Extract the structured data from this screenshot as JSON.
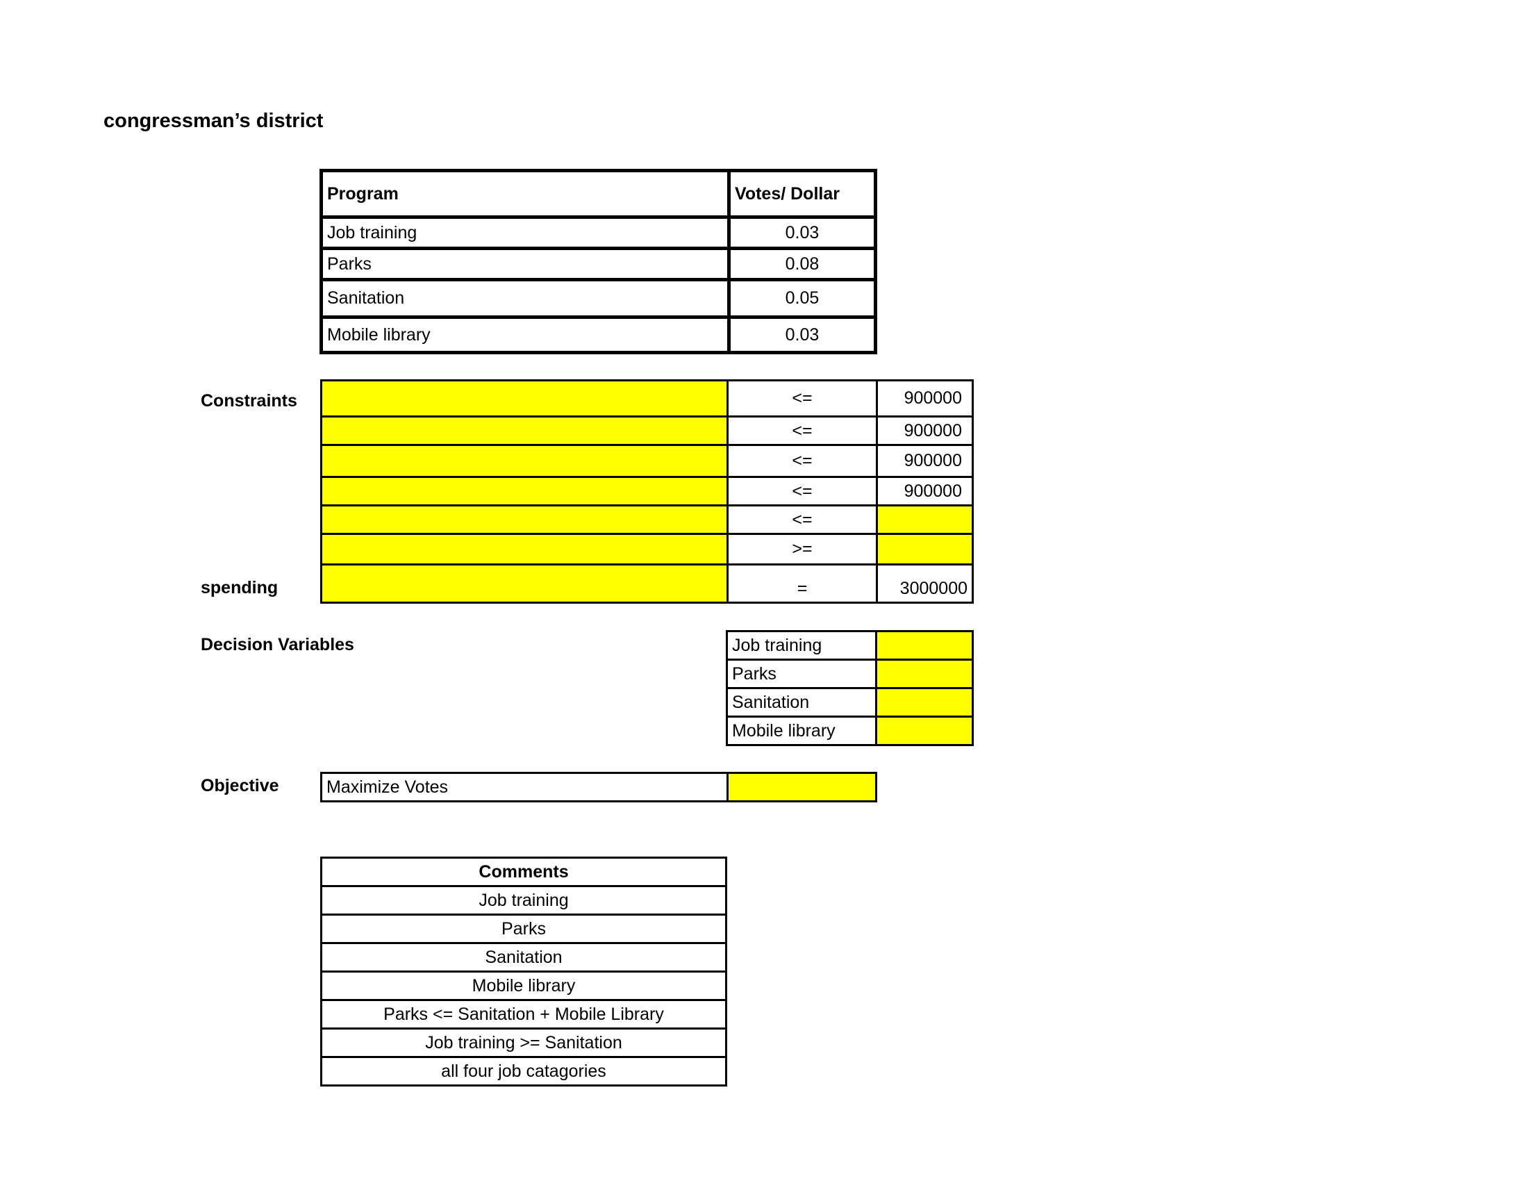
{
  "title": "congressman’s district",
  "programs_table": {
    "headers": [
      "Program",
      "Votes/ Dollar"
    ],
    "rows": [
      {
        "program": "Job training",
        "votes_per_dollar": "0.03"
      },
      {
        "program": "Parks",
        "votes_per_dollar": "0.08"
      },
      {
        "program": "Sanitation",
        "votes_per_dollar": "0.05"
      },
      {
        "program": "Mobile library",
        "votes_per_dollar": "0.03"
      }
    ]
  },
  "constraints": {
    "label": "Constraints",
    "spending_label": "spending",
    "rows": [
      {
        "sign": "<=",
        "rhs": "900000"
      },
      {
        "sign": "<=",
        "rhs": "900000"
      },
      {
        "sign": "<=",
        "rhs": "900000"
      },
      {
        "sign": "<=",
        "rhs": "900000"
      },
      {
        "sign": "<=",
        "rhs": ""
      },
      {
        "sign": ">=",
        "rhs": ""
      },
      {
        "sign": "=",
        "rhs": "3000000"
      }
    ]
  },
  "decision_variables": {
    "label": "Decision Variables",
    "rows": [
      "Job training",
      "Parks",
      "Sanitation",
      "Mobile library"
    ]
  },
  "objective": {
    "label": "Objective",
    "text": "Maximize Votes"
  },
  "comments": {
    "header": "Comments",
    "rows": [
      "Job training",
      "Parks",
      "Sanitation",
      "Mobile library",
      "Parks <= Sanitation + Mobile Library",
      "Job training >= Sanitation",
      "all four job catagories"
    ]
  },
  "colors": {
    "input_cell": "#ffff00",
    "border": "#000000"
  }
}
